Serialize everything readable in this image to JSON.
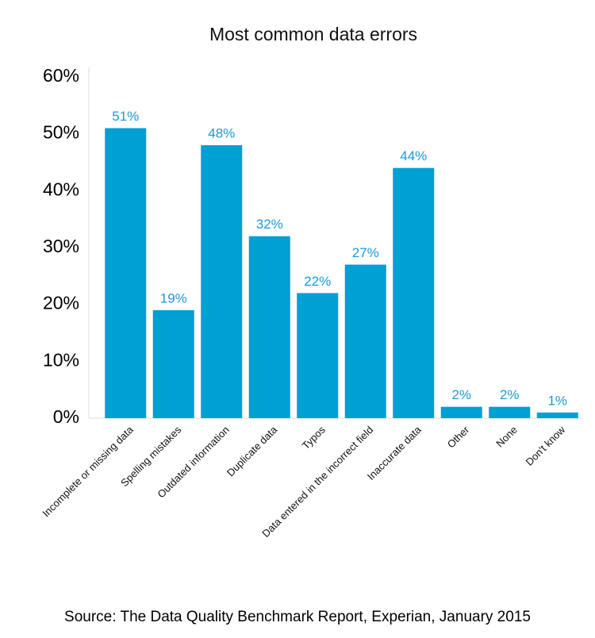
{
  "chart_data": {
    "type": "bar",
    "title": "Most common data errors",
    "categories": [
      "Incomplete or missing data",
      "Spelling mistakes",
      "Outdated information",
      "Duplicate data",
      "Typos",
      "Data entered in the incorrect field",
      "Inaccurate data",
      "Other",
      "None",
      "Don't know"
    ],
    "values": [
      51,
      19,
      48,
      32,
      22,
      27,
      44,
      2,
      2,
      1
    ],
    "value_labels": [
      "51%",
      "19%",
      "48%",
      "32%",
      "22%",
      "27%",
      "44%",
      "2%",
      "2%",
      "1%"
    ],
    "color": "#009fd4",
    "label_color": "#1a9ad6",
    "ylim": [
      0,
      60
    ],
    "yticks": [
      {
        "value": 0,
        "label": "0%"
      },
      {
        "value": 10,
        "label": "10%"
      },
      {
        "value": 20,
        "label": "20%"
      },
      {
        "value": 30,
        "label": "30%"
      },
      {
        "value": 40,
        "label": "40%"
      },
      {
        "value": 50,
        "label": "50%"
      },
      {
        "value": 60,
        "label": "60%"
      }
    ],
    "grid": false,
    "source": "Source: The Data Quality Benchmark Report, Experian, January 2015"
  }
}
